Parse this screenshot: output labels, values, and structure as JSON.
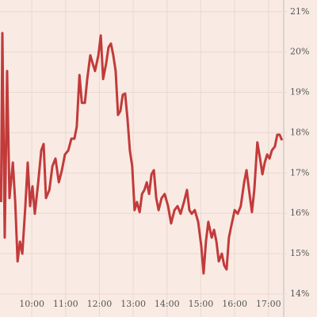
{
  "chart_data": {
    "type": "line",
    "x": [
      9.09,
      9.13,
      9.2,
      9.27,
      9.34,
      9.44,
      9.51,
      9.58,
      9.65,
      9.72,
      9.81,
      9.88,
      9.95,
      10.02,
      10.09,
      10.19,
      10.28,
      10.35,
      10.42,
      10.52,
      10.61,
      10.7,
      10.8,
      10.89,
      10.98,
      11.08,
      11.17,
      11.26,
      11.33,
      11.41,
      11.48,
      11.57,
      11.64,
      11.73,
      11.8,
      11.87,
      11.97,
      12.04,
      12.11,
      12.2,
      12.27,
      12.34,
      12.41,
      12.48,
      12.55,
      12.62,
      12.69,
      12.76,
      12.83,
      12.9,
      12.97,
      13.04,
      13.11,
      13.19,
      13.26,
      13.33,
      13.4,
      13.47,
      13.54,
      13.61,
      13.68,
      13.75,
      13.84,
      13.93,
      14.03,
      14.12,
      14.22,
      14.31,
      14.4,
      14.5,
      14.59,
      14.66,
      14.73,
      14.82,
      14.92,
      15.01,
      15.08,
      15.15,
      15.22,
      15.32,
      15.39,
      15.46,
      15.53,
      15.62,
      15.69,
      15.76,
      15.83,
      15.9,
      16.0,
      16.09,
      16.18,
      16.28,
      16.35,
      16.44,
      16.51,
      16.58,
      16.67,
      16.75,
      16.82,
      16.89,
      16.96,
      17.03,
      17.1,
      17.19,
      17.26,
      17.33,
      17.4
    ],
    "series": [
      {
        "color": "#c23b3b",
        "values": [
          16.28,
          20.47,
          15.4,
          19.53,
          16.38,
          17.26,
          16.28,
          14.81,
          15.3,
          15.0,
          16.18,
          17.26,
          16.18,
          16.67,
          15.99,
          16.77,
          17.56,
          17.72,
          16.38,
          16.58,
          17.17,
          17.36,
          16.77,
          17.07,
          17.46,
          17.56,
          17.85,
          17.85,
          18.15,
          19.43,
          18.74,
          18.74,
          19.33,
          19.92,
          19.72,
          19.53,
          19.92,
          20.41,
          19.33,
          19.72,
          20.12,
          20.21,
          19.92,
          19.53,
          18.44,
          18.54,
          18.94,
          18.97,
          18.35,
          17.56,
          17.17,
          16.08,
          16.28,
          16.03,
          16.48,
          16.58,
          16.77,
          16.48,
          16.97,
          17.07,
          16.38,
          16.08,
          16.38,
          16.48,
          16.18,
          15.75,
          16.08,
          16.18,
          15.99,
          16.28,
          16.58,
          16.08,
          15.99,
          16.08,
          15.79,
          15.2,
          14.51,
          15.3,
          15.79,
          15.4,
          15.59,
          15.3,
          14.81,
          15.0,
          14.71,
          14.61,
          15.4,
          15.69,
          16.08,
          15.99,
          16.18,
          16.77,
          17.07,
          16.48,
          16.03,
          16.58,
          17.76,
          17.36,
          16.97,
          17.26,
          17.46,
          17.36,
          17.56,
          17.66,
          17.95,
          17.95,
          17.81
        ]
      }
    ],
    "xlim": [
      9.06,
      17.45
    ],
    "xticks": [
      {
        "value": 10,
        "label": "10:00"
      },
      {
        "value": 11,
        "label": "11:00"
      },
      {
        "value": 12,
        "label": "12:00"
      },
      {
        "value": 13,
        "label": "13:00"
      },
      {
        "value": 14,
        "label": "14:00"
      },
      {
        "value": 15,
        "label": "15:00"
      },
      {
        "value": 16,
        "label": "16:00"
      },
      {
        "value": 17,
        "label": "17:00"
      }
    ],
    "ylim": [
      13.43,
      21.29
    ],
    "yticks": [
      {
        "value": 14,
        "label": "14%"
      },
      {
        "value": 15,
        "label": "15%"
      },
      {
        "value": 16,
        "label": "16%"
      },
      {
        "value": 17,
        "label": "17%"
      },
      {
        "value": 18,
        "label": "18%"
      },
      {
        "value": 19,
        "label": "19%"
      },
      {
        "value": 20,
        "label": "20%"
      },
      {
        "value": 21,
        "label": "21%"
      }
    ],
    "grid": true
  }
}
